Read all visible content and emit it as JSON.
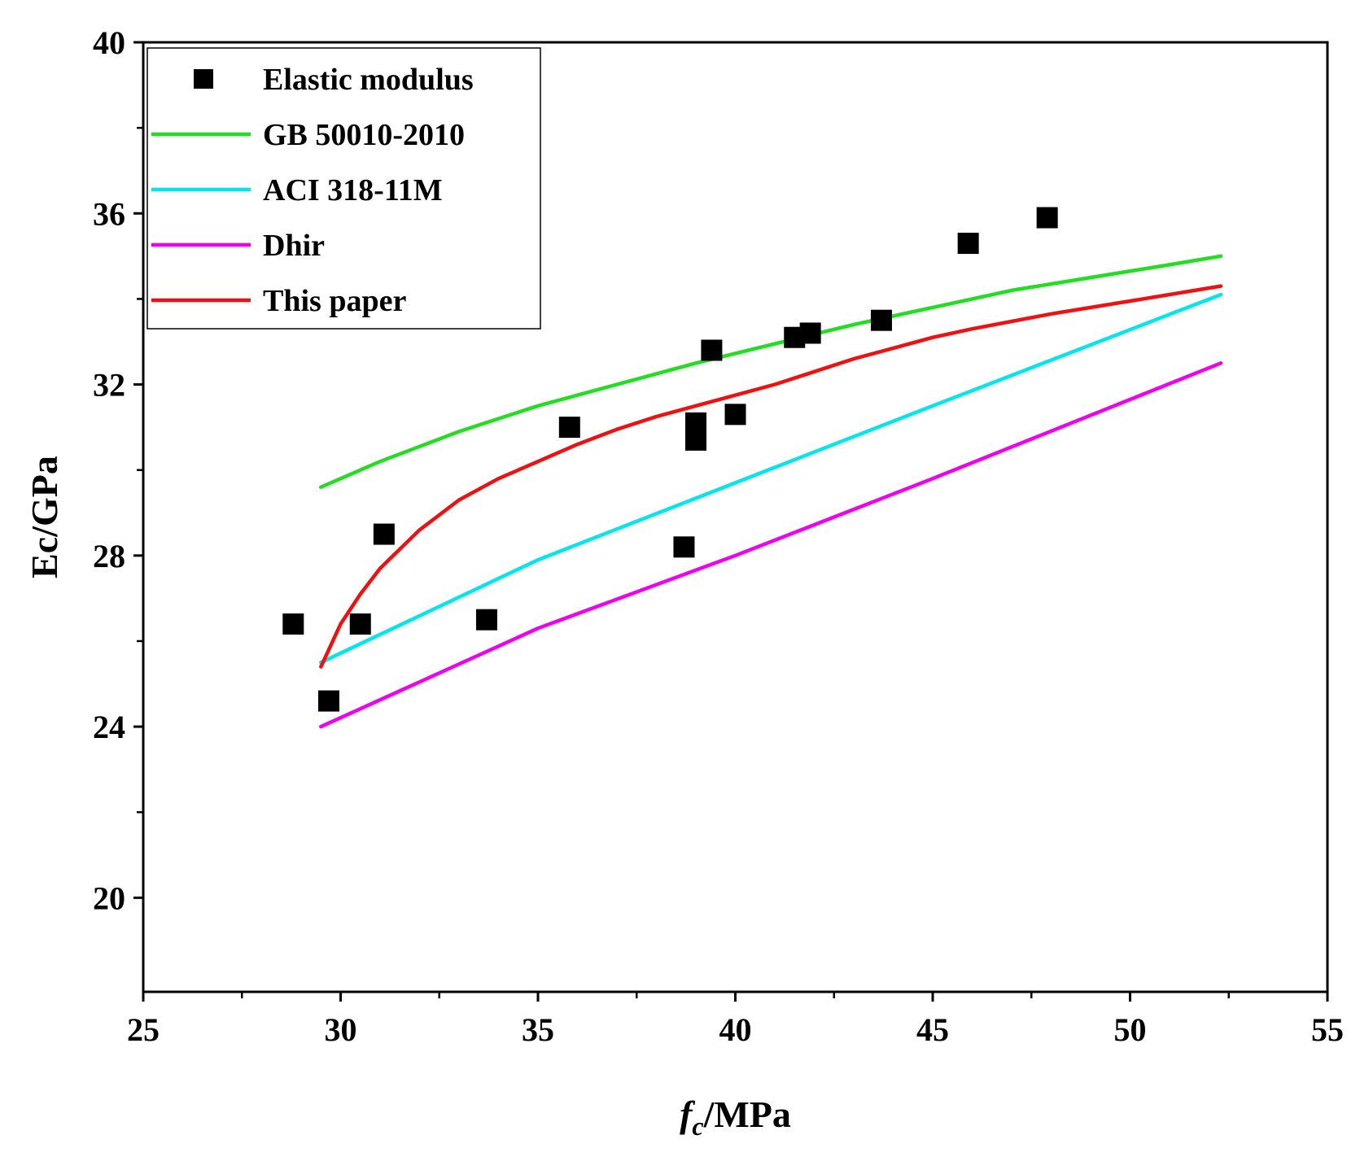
{
  "chart_data": {
    "type": "scatter",
    "title": "",
    "xlabel": {
      "italic": "f",
      "sub": "c",
      "rest": "/MPa"
    },
    "ylabel": "Ec/GPa",
    "xlim": [
      25,
      55
    ],
    "ylim": [
      17.8,
      40
    ],
    "xticks": [
      25,
      30,
      35,
      40,
      45,
      50,
      55
    ],
    "xminor": [
      27.5,
      32.5,
      37.5,
      42.5,
      47.5,
      52.5
    ],
    "yticks": [
      20,
      24,
      28,
      32,
      36,
      40
    ],
    "yminor": [
      22,
      26,
      30,
      34,
      38
    ],
    "legend_position": "top-left",
    "colors": {
      "points": "#000000",
      "gb": "#22dd22",
      "aci": "#00e5ee",
      "dhir": "#ee00ee",
      "this_paper": "#ee1111"
    },
    "points": {
      "name": "Elastic modulus",
      "x": [
        28.8,
        29.7,
        30.5,
        31.1,
        33.7,
        35.8,
        38.7,
        39.0,
        39.0,
        39.4,
        40.0,
        41.5,
        41.9,
        43.7,
        45.9,
        47.9
      ],
      "y": [
        26.4,
        24.6,
        26.4,
        28.5,
        26.5,
        31.0,
        28.2,
        31.1,
        30.7,
        32.8,
        31.3,
        33.1,
        33.2,
        33.5,
        35.3,
        35.9
      ]
    },
    "series": [
      {
        "name": "GB 50010-2010",
        "color_key": "gb",
        "x": [
          29.5,
          31,
          33,
          35,
          37,
          39,
          41,
          43,
          45,
          47,
          49,
          51,
          52.3
        ],
        "y": [
          29.6,
          30.2,
          30.9,
          31.5,
          32.0,
          32.5,
          32.95,
          33.4,
          33.8,
          34.2,
          34.5,
          34.8,
          35.0
        ]
      },
      {
        "name": "ACI 318-11M",
        "color_key": "aci",
        "x": [
          29.5,
          35,
          40,
          45,
          52.3
        ],
        "y": [
          25.5,
          27.9,
          29.7,
          31.5,
          34.1
        ]
      },
      {
        "name": "Dhir",
        "color_key": "dhir",
        "x": [
          29.5,
          35,
          40,
          45,
          52.3
        ],
        "y": [
          24.0,
          26.3,
          28.0,
          29.8,
          32.5
        ]
      },
      {
        "name": "This paper",
        "color_key": "this_paper",
        "x": [
          29.5,
          30,
          30.5,
          31,
          32,
          33,
          34,
          35,
          36,
          37,
          38,
          39,
          40,
          41,
          42,
          43,
          44,
          45,
          46,
          48,
          50,
          52.3
        ],
        "y": [
          25.4,
          26.4,
          27.1,
          27.7,
          28.6,
          29.3,
          29.8,
          30.2,
          30.6,
          30.95,
          31.25,
          31.5,
          31.75,
          32.0,
          32.3,
          32.6,
          32.85,
          33.1,
          33.3,
          33.65,
          33.95,
          34.3
        ]
      }
    ]
  }
}
